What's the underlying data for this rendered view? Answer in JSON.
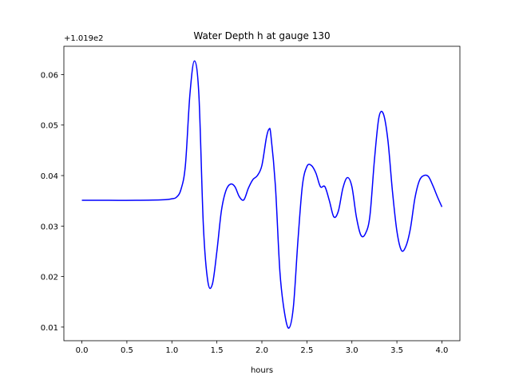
{
  "chart_data": {
    "type": "line",
    "title": "Water Depth h at gauge 130",
    "xlabel": "hours",
    "ylabel": "",
    "y_offset_label": "+1.019e2",
    "xlim": [
      -0.2,
      4.2
    ],
    "ylim": [
      0.0073,
      0.0656
    ],
    "grid": false,
    "x_ticks": [
      0.0,
      0.5,
      1.0,
      1.5,
      2.0,
      2.5,
      3.0,
      3.5,
      4.0
    ],
    "x_tick_labels": [
      "0.0",
      "0.5",
      "1.0",
      "1.5",
      "2.0",
      "2.5",
      "3.0",
      "3.5",
      "4.0"
    ],
    "y_ticks": [
      0.01,
      0.02,
      0.03,
      0.04,
      0.05,
      0.06
    ],
    "y_tick_labels": [
      "0.01",
      "0.02",
      "0.03",
      "0.04",
      "0.05",
      "0.06"
    ],
    "series": [
      {
        "color": "#0000ff",
        "x": [
          0.0,
          0.3,
          0.6,
          0.9,
          1.0,
          1.05,
          1.1,
          1.15,
          1.2,
          1.25,
          1.3,
          1.35,
          1.4,
          1.45,
          1.5,
          1.55,
          1.6,
          1.65,
          1.7,
          1.75,
          1.8,
          1.85,
          1.9,
          1.95,
          2.0,
          2.05,
          2.08,
          2.1,
          2.15,
          2.2,
          2.25,
          2.3,
          2.35,
          2.4,
          2.45,
          2.5,
          2.55,
          2.6,
          2.65,
          2.7,
          2.75,
          2.8,
          2.85,
          2.9,
          2.95,
          3.0,
          3.05,
          3.1,
          3.15,
          3.2,
          3.25,
          3.3,
          3.35,
          3.4,
          3.45,
          3.5,
          3.55,
          3.6,
          3.65,
          3.7,
          3.75,
          3.8,
          3.85,
          3.9,
          3.95,
          4.0
        ],
        "y": [
          0.0351,
          0.0351,
          0.0351,
          0.0352,
          0.0354,
          0.0357,
          0.0372,
          0.042,
          0.056,
          0.0627,
          0.056,
          0.03,
          0.019,
          0.0185,
          0.025,
          0.033,
          0.037,
          0.0383,
          0.0378,
          0.0358,
          0.0352,
          0.0375,
          0.0392,
          0.04,
          0.042,
          0.0475,
          0.0492,
          0.048,
          0.038,
          0.021,
          0.013,
          0.0098,
          0.014,
          0.027,
          0.038,
          0.0418,
          0.042,
          0.0405,
          0.0378,
          0.0378,
          0.035,
          0.0318,
          0.033,
          0.0375,
          0.0396,
          0.0378,
          0.0318,
          0.0282,
          0.0285,
          0.032,
          0.043,
          0.0515,
          0.0522,
          0.047,
          0.037,
          0.029,
          0.0252,
          0.026,
          0.0295,
          0.0355,
          0.039,
          0.04,
          0.0398,
          0.038,
          0.0358,
          0.0338
        ]
      }
    ]
  }
}
